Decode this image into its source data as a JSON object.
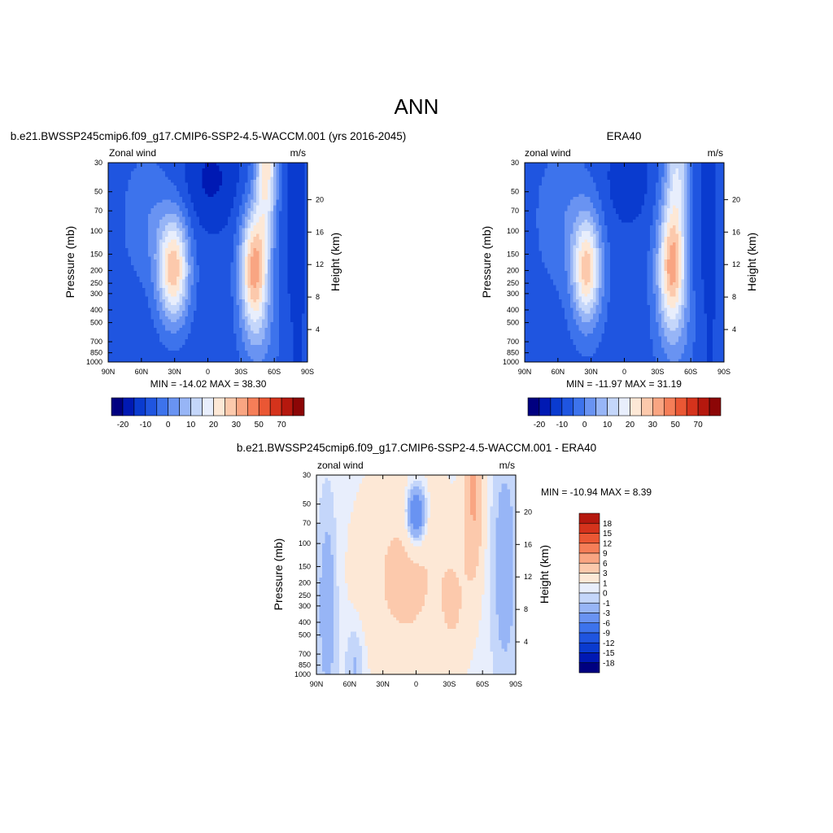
{
  "figure_title": "ANN",
  "colors": {
    "model_obs": [
      "#000080",
      "#0019b3",
      "#0a3bcf",
      "#1f55e0",
      "#3d73ec",
      "#6993f2",
      "#97b5f6",
      "#c4d6fa",
      "#e8eefc",
      "#fde8d6",
      "#fcc9ac",
      "#f9a582",
      "#f57e58",
      "#ea5734",
      "#d5331c",
      "#b5180e",
      "#8c0606"
    ],
    "diff": [
      "#000080",
      "#0019b3",
      "#0a3bcf",
      "#1f55e0",
      "#3d73ec",
      "#6993f2",
      "#97b5f6",
      "#c4d6fa",
      "#e8eefc",
      "#fde8d6",
      "#fcc9ac",
      "#f9a582",
      "#f57e58",
      "#ea5734",
      "#d5331c",
      "#b5180e",
      "#8c0606"
    ]
  },
  "colorbar_model_obs": {
    "tick_labels": [
      "-20",
      "-10",
      "0",
      "10",
      "20",
      "30",
      "50",
      "70"
    ]
  },
  "colorbar_diff": {
    "tick_labels": [
      "18",
      "15",
      "12",
      "9",
      "6",
      "3",
      "1",
      "0",
      "-1",
      "-3",
      "-6",
      "-9",
      "-12",
      "-15",
      "-18"
    ]
  },
  "chart_data": [
    {
      "type": "heatmap",
      "title": "b.e21.BWSSP245cmip6.f09_g17.CMIP6-SSP2-4.5-WACCM.001 (yrs 2016-2045)",
      "left_label": "Zonal wind",
      "right_label": "m/s",
      "xlabel": "",
      "ylabel": "Pressure (mb)",
      "ylabel_right": "Height (km)",
      "x_ticks": [
        "90N",
        "60N",
        "30N",
        "0",
        "30S",
        "60S",
        "90S"
      ],
      "y_ticks": [
        "30",
        "50",
        "70",
        "100",
        "150",
        "200",
        "250",
        "300",
        "400",
        "500",
        "700",
        "850",
        "1000"
      ],
      "y_ticks_right": [
        "20",
        "16",
        "12",
        "8",
        "4"
      ],
      "stats": "MIN = -14.02  MAX =  38.30",
      "min": -14.02,
      "max": 38.3,
      "features": {
        "nh_jet": {
          "lat": 31,
          "pressure": 195,
          "peak": 28
        },
        "sh_jet": {
          "lat": -41,
          "pressure": 195,
          "peak": 32
        },
        "sh_strat_jet": {
          "lat": -53,
          "pressure": 30,
          "peak": 38
        }
      }
    },
    {
      "type": "heatmap",
      "title": "ERA40",
      "left_label": "zonal wind",
      "right_label": "m/s",
      "xlabel": "",
      "ylabel": "Pressure (mb)",
      "ylabel_right": "Height (km)",
      "x_ticks": [
        "90N",
        "60N",
        "30N",
        "0",
        "30S",
        "60S",
        "90S"
      ],
      "y_ticks": [
        "30",
        "50",
        "70",
        "100",
        "150",
        "200",
        "250",
        "300",
        "400",
        "500",
        "700",
        "850",
        "1000"
      ],
      "y_ticks_right": [
        "20",
        "16",
        "12",
        "8",
        "4"
      ],
      "stats": "MIN = -11.97  MAX =  31.19",
      "min": -11.97,
      "max": 31.19,
      "features": {
        "nh_jet": {
          "lat": 34,
          "pressure": 195,
          "peak": 27
        },
        "sh_jet": {
          "lat": -43,
          "pressure": 195,
          "peak": 31
        }
      }
    },
    {
      "type": "heatmap",
      "title": "b.e21.BWSSP245cmip6.f09_g17.CMIP6-SSP2-4.5-WACCM.001 - ERA40",
      "left_label": "zonal wind",
      "right_label": "m/s",
      "xlabel": "",
      "ylabel": "Pressure (mb)",
      "ylabel_right": "Height (km)",
      "x_ticks": [
        "90N",
        "60N",
        "30N",
        "0",
        "30S",
        "60S",
        "90S"
      ],
      "y_ticks": [
        "30",
        "50",
        "70",
        "100",
        "150",
        "200",
        "250",
        "300",
        "400",
        "500",
        "700",
        "850",
        "1000"
      ],
      "y_ticks_right": [
        "20",
        "16",
        "12",
        "8",
        "4"
      ],
      "stats": "MIN = -10.94  MAX =   8.39",
      "min": -10.94,
      "max": 8.39
    }
  ]
}
